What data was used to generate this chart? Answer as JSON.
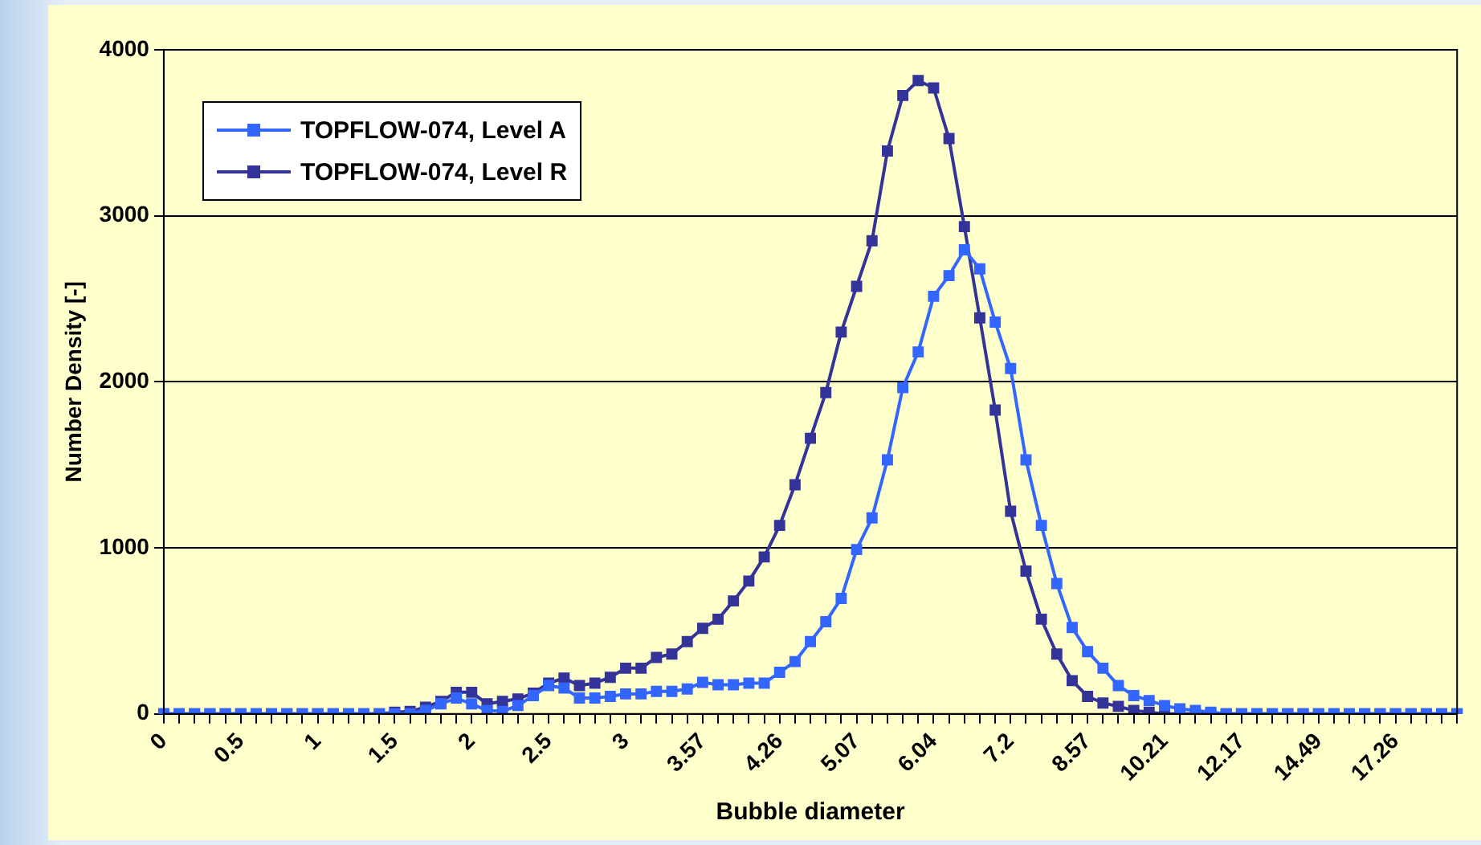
{
  "chart_data": {
    "type": "line",
    "xlabel": "Bubble diameter",
    "ylabel": "Number Density [-]",
    "categories": [
      "0",
      null,
      null,
      null,
      null,
      "0.5",
      null,
      null,
      null,
      null,
      "1",
      null,
      null,
      null,
      null,
      "1.5",
      null,
      null,
      null,
      null,
      "2",
      null,
      null,
      null,
      null,
      "2.5",
      null,
      null,
      null,
      null,
      "3",
      null,
      null,
      null,
      null,
      "3.57",
      null,
      null,
      null,
      null,
      "4.26",
      null,
      null,
      null,
      null,
      "5.07",
      null,
      null,
      null,
      null,
      "6.04",
      null,
      null,
      null,
      null,
      "7.2",
      null,
      null,
      null,
      null,
      "8.57",
      null,
      null,
      null,
      null,
      "10.21",
      null,
      null,
      null,
      null,
      "12.17",
      null,
      null,
      null,
      null,
      "14.49",
      null,
      null,
      null,
      null,
      "17.26",
      null,
      null,
      null,
      null
    ],
    "series": [
      {
        "name": "TOPFLOW-074, Level A",
        "color": "#3366ff",
        "values": [
          0,
          0,
          0,
          0,
          0,
          0,
          0,
          0,
          0,
          0,
          0,
          0,
          0,
          0,
          0,
          0,
          0,
          20,
          60,
          95,
          60,
          20,
          15,
          50,
          110,
          170,
          155,
          95,
          95,
          105,
          120,
          120,
          135,
          135,
          150,
          190,
          175,
          175,
          185,
          185,
          250,
          315,
          435,
          555,
          695,
          990,
          1180,
          1530,
          1965,
          2180,
          2515,
          2640,
          2795,
          2680,
          2360,
          2080,
          1530,
          1135,
          785,
          520,
          375,
          275,
          170,
          110,
          80,
          50,
          30,
          20,
          10,
          0,
          0,
          0,
          0,
          0,
          0,
          0,
          0,
          0,
          0,
          0,
          0,
          0,
          0,
          0,
          0
        ]
      },
      {
        "name": "TOPFLOW-074, Level R",
        "color": "#333399",
        "values": [
          0,
          0,
          0,
          0,
          0,
          0,
          0,
          0,
          0,
          0,
          0,
          0,
          0,
          0,
          0,
          10,
          15,
          40,
          75,
          130,
          130,
          60,
          75,
          90,
          125,
          185,
          215,
          170,
          185,
          220,
          275,
          275,
          340,
          360,
          435,
          515,
          570,
          680,
          800,
          945,
          1135,
          1380,
          1660,
          1935,
          2300,
          2575,
          2850,
          3390,
          3725,
          3815,
          3770,
          3465,
          2935,
          2385,
          1830,
          1220,
          860,
          570,
          360,
          200,
          105,
          65,
          45,
          20,
          10,
          0,
          0,
          0,
          0,
          0,
          0,
          0,
          0,
          0,
          0,
          0,
          0,
          0,
          0,
          0,
          0,
          0,
          0,
          0,
          0
        ]
      }
    ],
    "ylim": [
      0,
      4000
    ],
    "yticks": [
      0,
      1000,
      2000,
      3000,
      4000
    ],
    "grid": "y",
    "legend": "top left",
    "marker": "square",
    "line_style": "solid"
  }
}
